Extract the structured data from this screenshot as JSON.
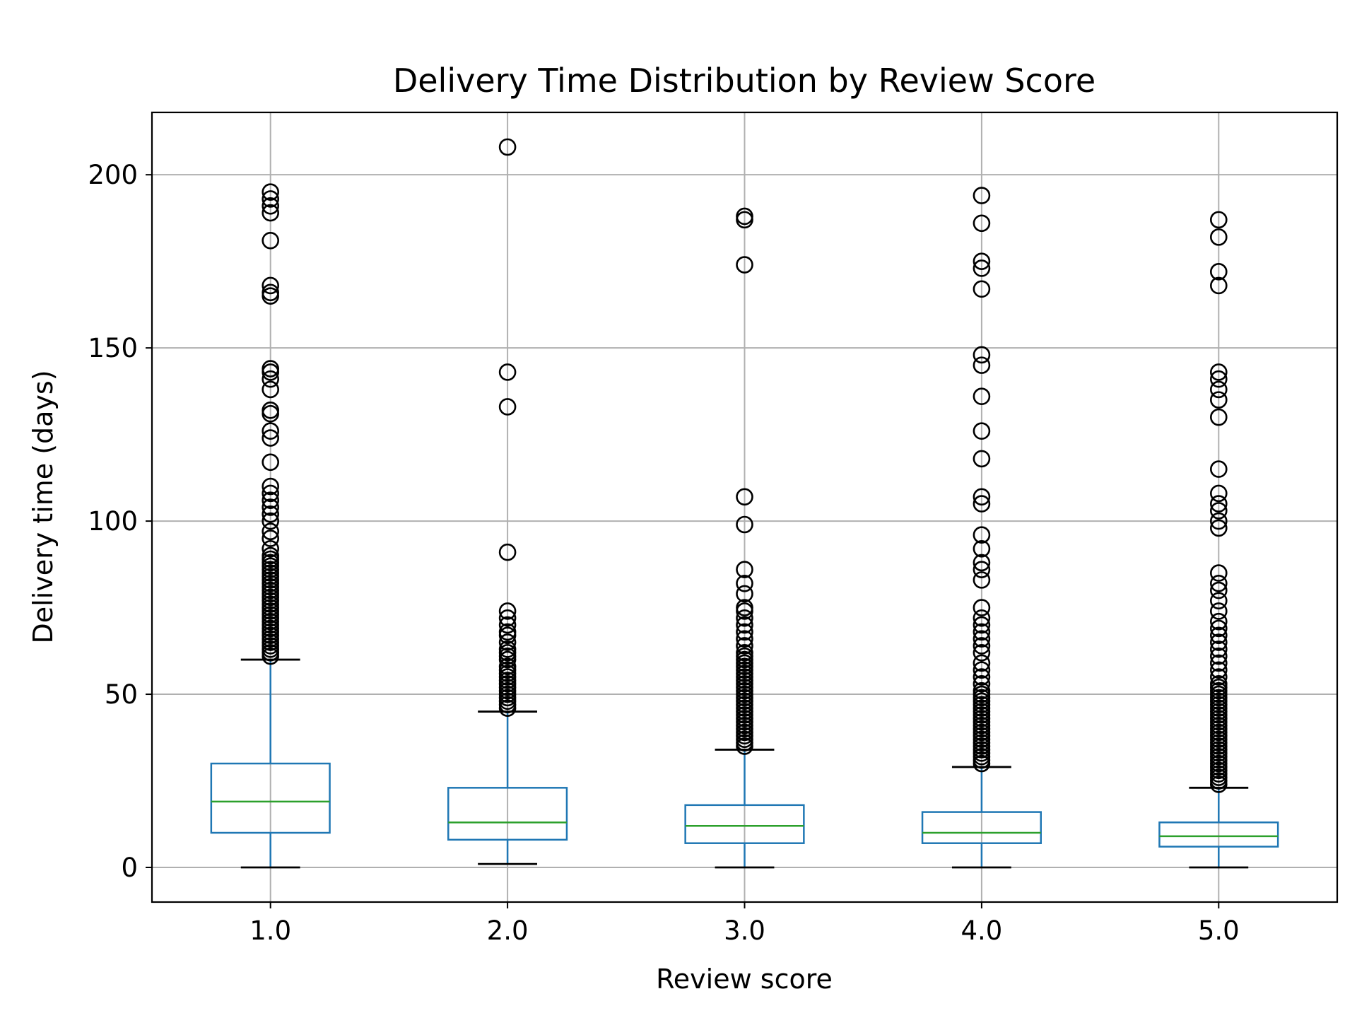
{
  "chart_data": {
    "type": "box",
    "title": "Delivery Time Distribution by Review Score",
    "xlabel": "Review score",
    "ylabel": "Delivery time (days)",
    "categories": [
      "1.0",
      "2.0",
      "3.0",
      "4.0",
      "5.0"
    ],
    "ylim": [
      -10,
      218
    ],
    "yticks": [
      0,
      50,
      100,
      150,
      200
    ],
    "ytick_labels": [
      "0",
      "50",
      "100",
      "150",
      "200"
    ],
    "grid": true,
    "colors": {
      "box": "#1f77b4",
      "median": "#2ca02c",
      "whisker_cap": "#000000",
      "grid": "#b0b0b0",
      "flier": "#000000"
    },
    "boxes": [
      {
        "category": "1.0",
        "whislo": 0,
        "q1": 10,
        "median": 19,
        "q3": 30,
        "whishi": 60,
        "fliers": [
          61,
          62,
          63,
          64,
          65,
          66,
          67,
          68,
          69,
          70,
          71,
          72,
          73,
          74,
          75,
          76,
          77,
          78,
          79,
          80,
          81,
          82,
          83,
          84,
          85,
          86,
          87,
          88,
          89,
          90,
          92,
          95,
          97,
          100,
          102,
          104,
          106,
          108,
          110,
          117,
          124,
          126,
          131,
          132,
          138,
          141,
          143,
          144,
          165,
          166,
          168,
          181,
          189,
          191,
          193,
          195
        ]
      },
      {
        "category": "2.0",
        "whislo": 1,
        "q1": 8,
        "median": 13,
        "q3": 23,
        "whishi": 45,
        "fliers": [
          46,
          47,
          48,
          49,
          50,
          51,
          52,
          53,
          54,
          55,
          56,
          57,
          58,
          60,
          61,
          62,
          63,
          65,
          67,
          68,
          70,
          72,
          74,
          91,
          133,
          143,
          208
        ]
      },
      {
        "category": "3.0",
        "whislo": 0,
        "q1": 7,
        "median": 12,
        "q3": 18,
        "whishi": 34,
        "fliers": [
          35,
          36,
          37,
          38,
          39,
          40,
          41,
          42,
          43,
          44,
          45,
          46,
          47,
          48,
          49,
          50,
          51,
          52,
          53,
          54,
          55,
          56,
          57,
          58,
          59,
          60,
          61,
          62,
          64,
          66,
          68,
          70,
          72,
          74,
          75,
          79,
          82,
          86,
          99,
          107,
          174,
          187,
          188
        ]
      },
      {
        "category": "4.0",
        "whislo": 0,
        "q1": 7,
        "median": 10,
        "q3": 16,
        "whishi": 29,
        "fliers": [
          30,
          31,
          32,
          33,
          34,
          35,
          36,
          37,
          38,
          39,
          40,
          41,
          42,
          43,
          44,
          45,
          46,
          47,
          48,
          49,
          50,
          51,
          53,
          55,
          57,
          59,
          62,
          64,
          66,
          68,
          70,
          72,
          75,
          83,
          86,
          88,
          92,
          96,
          105,
          107,
          118,
          126,
          136,
          145,
          148,
          167,
          173,
          175,
          186,
          194
        ]
      },
      {
        "category": "5.0",
        "whislo": 0,
        "q1": 6,
        "median": 9,
        "q3": 13,
        "whishi": 23,
        "fliers": [
          24,
          25,
          26,
          27,
          28,
          29,
          30,
          31,
          32,
          33,
          34,
          35,
          36,
          37,
          38,
          39,
          40,
          41,
          42,
          43,
          44,
          45,
          46,
          47,
          48,
          49,
          50,
          51,
          52,
          53,
          55,
          57,
          59,
          61,
          63,
          65,
          67,
          69,
          71,
          74,
          77,
          80,
          82,
          85,
          98,
          100,
          103,
          105,
          108,
          115,
          130,
          135,
          138,
          141,
          143,
          168,
          172,
          182,
          187
        ]
      }
    ]
  }
}
